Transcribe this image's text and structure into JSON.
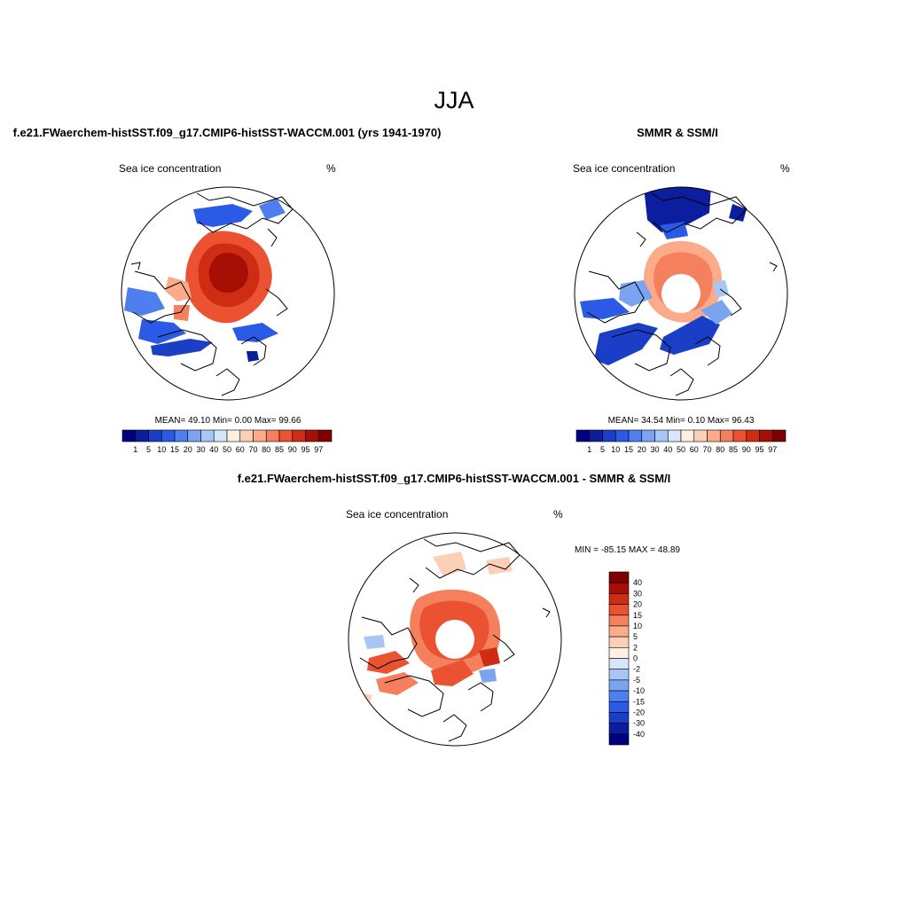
{
  "figure": {
    "main_title": "JJA",
    "variable_label": "Sea ice concentration",
    "units_label": "%"
  },
  "panels": {
    "model": {
      "title": "f.e21.FWaerchem-histSST.f09_g17.CMIP6-histSST-WACCM.001 (yrs 1941-1970)",
      "stats": "MEAN=  49.10  Min=   0.00  Max=  99.66",
      "mean": 49.1,
      "min": 0.0,
      "max": 99.66
    },
    "obs": {
      "title": "SMMR & SSM/I",
      "stats": "MEAN=  34.54  Min=   0.10  Max=  96.43",
      "mean": 34.54,
      "min": 0.1,
      "max": 96.43
    },
    "diff": {
      "title": "f.e21.FWaerchem-histSST.f09_g17.CMIP6-histSST-WACCM.001 - SMMR & SSM/I",
      "stats": "MIN = -85.15 MAX =  48.89",
      "min": -85.15,
      "max": 48.89
    }
  },
  "colorbars": {
    "concentration": {
      "levels": [
        "1",
        "5",
        "10",
        "15",
        "20",
        "30",
        "40",
        "50",
        "60",
        "70",
        "80",
        "85",
        "90",
        "95",
        "97"
      ],
      "colors": [
        "#00007f",
        "#0b1e9e",
        "#1a3fc6",
        "#2a5ae6",
        "#4f7fee",
        "#7ba4f0",
        "#a8c6f4",
        "#d6e6fb",
        "#fff0e2",
        "#fcd0b6",
        "#fbab8a",
        "#f4805d",
        "#ea5232",
        "#cf2c14",
        "#a60f04",
        "#7f0000"
      ]
    },
    "difference": {
      "levels": [
        "40",
        "30",
        "20",
        "15",
        "10",
        "5",
        "2",
        "0",
        "-2",
        "-5",
        "-10",
        "-15",
        "-20",
        "-30",
        "-40"
      ],
      "colors": [
        "#7f0000",
        "#a60f04",
        "#cf2c14",
        "#ea5232",
        "#f4805d",
        "#fbab8a",
        "#fcd0b6",
        "#fff0e2",
        "#d6e6fb",
        "#a8c6f4",
        "#7ba4f0",
        "#4f7fee",
        "#2a5ae6",
        "#1a3fc6",
        "#0b1e9e",
        "#00007f"
      ]
    }
  }
}
